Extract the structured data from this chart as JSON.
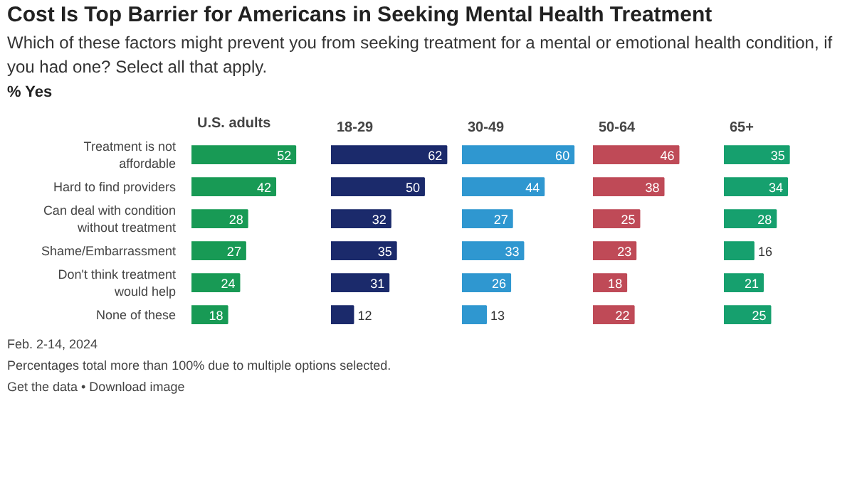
{
  "chart_data": [
    {
      "type": "other",
      "title": "Cost Is Top Barrier for Americans in Seeking Mental Health Treatment",
      "subtitle": "Which of these factors might prevent you from seeking treatment for a mental or emotional health condition, if you had one? Select all that apply.",
      "annotations": [
        "% Yes"
      ]
    },
    {
      "type": "bar",
      "orientation": "horizontal",
      "title": "U.S. adults",
      "categories": [
        "Treatment is not affordable",
        "Hard to find providers",
        "Can deal with condition without treatment",
        "Shame/Embarrassment",
        "Don't think treatment would help",
        "None of these"
      ],
      "values": [
        52,
        42,
        28,
        27,
        24,
        18
      ],
      "color": "#189a55",
      "data_labels": true,
      "tick_labels": "y"
    },
    {
      "type": "bar",
      "orientation": "horizontal",
      "title": "18-29",
      "categories": [
        "Treatment is not affordable",
        "Hard to find providers",
        "Can deal with condition without treatment",
        "Shame/Embarrassment",
        "Don't think treatment would help",
        "None of these"
      ],
      "values": [
        62,
        50,
        32,
        35,
        31,
        12
      ],
      "color": "#1b2a6b",
      "data_labels": true,
      "tick_labels": false
    },
    {
      "type": "bar",
      "orientation": "horizontal",
      "title": "30-49",
      "categories": [
        "Treatment is not affordable",
        "Hard to find providers",
        "Can deal with condition without treatment",
        "Shame/Embarrassment",
        "Don't think treatment would help",
        "None of these"
      ],
      "values": [
        60,
        44,
        27,
        33,
        26,
        13
      ],
      "color": "#2f97d0",
      "data_labels": true,
      "tick_labels": false
    },
    {
      "type": "bar",
      "orientation": "horizontal",
      "title": "50-64",
      "categories": [
        "Treatment is not affordable",
        "Hard to find providers",
        "Can deal with condition without treatment",
        "Shame/Embarrassment",
        "Don't think treatment would help",
        "None of these"
      ],
      "values": [
        46,
        38,
        25,
        23,
        18,
        22
      ],
      "color": "#bf4a57",
      "data_labels": true,
      "tick_labels": false
    },
    {
      "type": "bar",
      "orientation": "horizontal",
      "title": "65+",
      "categories": [
        "Treatment is not affordable",
        "Hard to find providers",
        "Can deal with condition without treatment",
        "Shame/Embarrassment",
        "Don't think treatment would help",
        "None of these"
      ],
      "values": [
        35,
        34,
        28,
        16,
        21,
        25
      ],
      "color": "#16a06e",
      "data_labels": true,
      "tick_labels": false,
      "annotations": [
        "Feb. 2-14, 2024",
        "Percentages total more than 100% due to multiple options selected.",
        "Get the data • Download image"
      ]
    }
  ]
}
